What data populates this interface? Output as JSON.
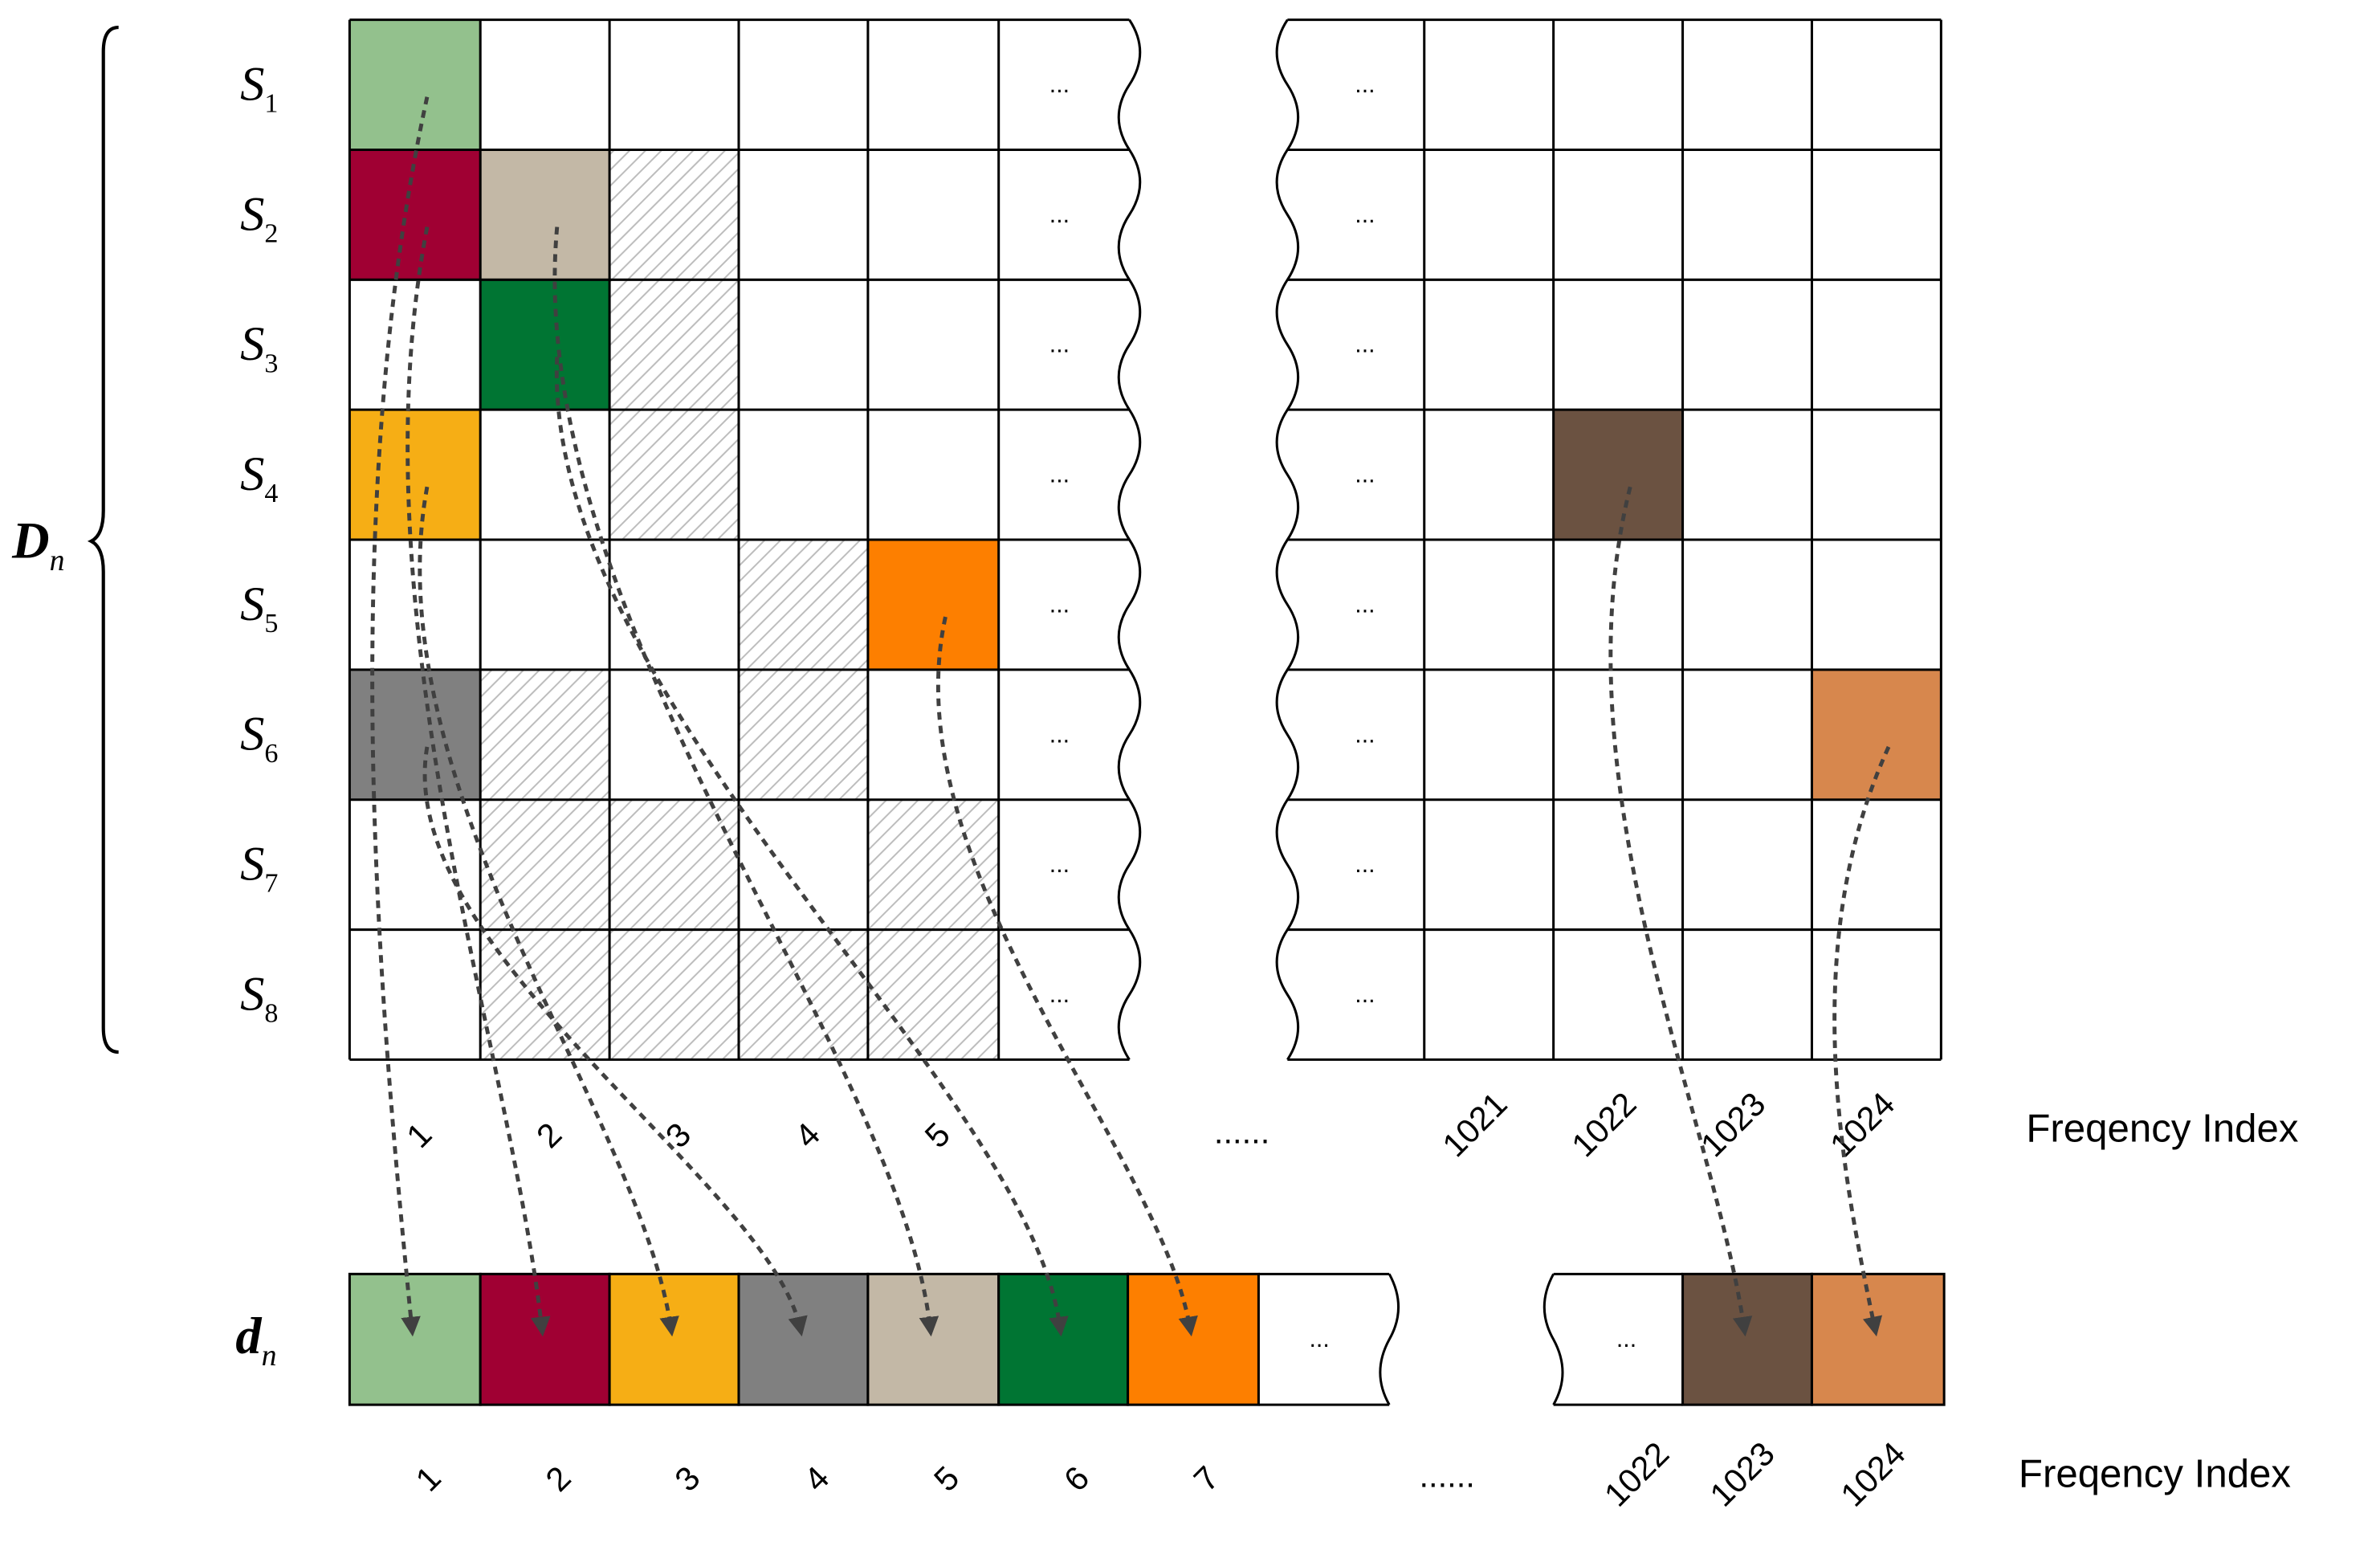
{
  "matrix": {
    "group_label": "D",
    "group_sub": "n",
    "rows": [
      {
        "label": "S",
        "sub": "1"
      },
      {
        "label": "S",
        "sub": "2"
      },
      {
        "label": "S",
        "sub": "3"
      },
      {
        "label": "S",
        "sub": "4"
      },
      {
        "label": "S",
        "sub": "5"
      },
      {
        "label": "S",
        "sub": "6"
      },
      {
        "label": "S",
        "sub": "7"
      },
      {
        "label": "S",
        "sub": "8"
      }
    ],
    "left_col_labels": [
      "1",
      "2",
      "3",
      "4",
      "5"
    ],
    "right_col_labels": [
      "1021",
      "1022",
      "1023",
      "1024"
    ],
    "cell_ellipsis": "...",
    "axis_ellipsis": "......",
    "axis_title": "Freqency Index",
    "colored_cells": [
      {
        "row": 0,
        "col": 0,
        "color": "#93c18d"
      },
      {
        "row": 1,
        "col": 0,
        "color": "#a00033"
      },
      {
        "row": 1,
        "col": 1,
        "color": "#c3b8a6"
      },
      {
        "row": 2,
        "col": 1,
        "color": "#007533"
      },
      {
        "row": 3,
        "col": 0,
        "color": "#f6ae15"
      },
      {
        "row": 3,
        "col": "1022",
        "color": "#6b5241"
      },
      {
        "row": 4,
        "col": 4,
        "color": "#fd7f00"
      },
      {
        "row": 5,
        "col": 0,
        "color": "#808080"
      },
      {
        "row": 5,
        "col": "1024",
        "color": "#d7874d"
      }
    ],
    "hatched_cells": [
      {
        "row": 1,
        "col": 2
      },
      {
        "row": 2,
        "col": 2
      },
      {
        "row": 3,
        "col": 2
      },
      {
        "row": 4,
        "col": 3
      },
      {
        "row": 5,
        "col": 1
      },
      {
        "row": 5,
        "col": 3
      },
      {
        "row": 6,
        "col": 1
      },
      {
        "row": 6,
        "col": 2
      },
      {
        "row": 6,
        "col": 4
      },
      {
        "row": 7,
        "col": 1
      },
      {
        "row": 7,
        "col": 2
      },
      {
        "row": 7,
        "col": 3
      },
      {
        "row": 7,
        "col": 4
      }
    ]
  },
  "vector": {
    "label": "d",
    "label_sub": "n",
    "left_cells": [
      {
        "index": "1",
        "color": "#93c18d"
      },
      {
        "index": "2",
        "color": "#a00033"
      },
      {
        "index": "3",
        "color": "#f6ae15"
      },
      {
        "index": "4",
        "color": "#808080"
      },
      {
        "index": "5",
        "color": "#c3b8a6"
      },
      {
        "index": "6",
        "color": "#007533"
      },
      {
        "index": "7",
        "color": "#fd7f00"
      }
    ],
    "right_cells": [
      {
        "index": "1023",
        "color": "#6b5241"
      },
      {
        "index": "1024",
        "color": "#d7874d"
      }
    ],
    "right_extra_labels": [
      "1022"
    ],
    "cell_ellipsis": "...",
    "axis_ellipsis": "......",
    "axis_title": "Freqency Index"
  },
  "mapping": [
    {
      "from_row": 0,
      "from_col": 0,
      "to": "1"
    },
    {
      "from_row": 1,
      "from_col": 0,
      "to": "2"
    },
    {
      "from_row": 3,
      "from_col": 0,
      "to": "3"
    },
    {
      "from_row": 5,
      "from_col": 0,
      "to": "4"
    },
    {
      "from_row": 1,
      "from_col": 1,
      "to": "5"
    },
    {
      "from_row": 2,
      "from_col": 1,
      "to": "6"
    },
    {
      "from_row": 4,
      "from_col": 4,
      "to": "7"
    },
    {
      "from_row": 3,
      "from_col": "1022",
      "to": "1023"
    },
    {
      "from_row": 5,
      "from_col": "1024",
      "to": "1024"
    }
  ],
  "colors": {
    "grid": "#000000",
    "arrow": "#404040",
    "hatch": "#bdbdbd"
  }
}
